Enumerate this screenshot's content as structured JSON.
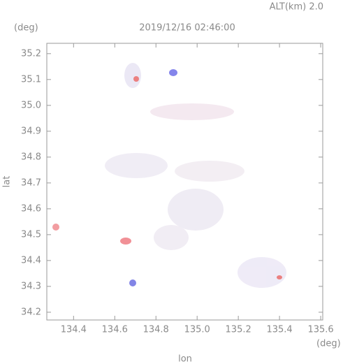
{
  "chart_data": {
    "type": "image",
    "title": "2019/12/16 02:46:00",
    "subtitle": "ALT(km) 2.0",
    "x_label": "lon",
    "y_label": "lat",
    "x_unit": "(deg)",
    "y_unit": "(deg)",
    "xlim": [
      134.27,
      135.61
    ],
    "ylim": [
      34.17,
      35.24
    ],
    "xticks": [
      134.4,
      134.6,
      134.8,
      {
        "value": 135,
        "label": "135.0"
      },
      135.2,
      135.4,
      135.6
    ],
    "yticks": [
      34.2,
      34.3,
      34.4,
      34.5,
      34.6,
      34.7,
      34.8,
      34.9,
      {
        "value": 35,
        "label": "35.0"
      },
      35.1,
      35.2
    ],
    "grid": false
  }
}
